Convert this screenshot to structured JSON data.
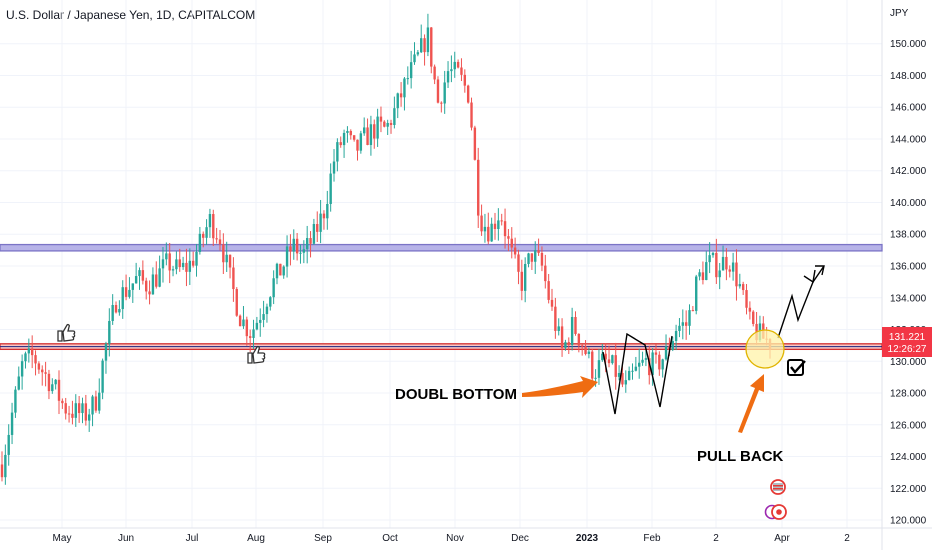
{
  "header": {
    "title": "U.S. Dollar / Japanese Yen, 1D, CAPITALCOM"
  },
  "chart_data": {
    "type": "candlestick",
    "title": "U.S. Dollar / Japanese Yen, 1D, CAPITALCOM",
    "currency": "JPY",
    "y_ticks": [
      120,
      122,
      124,
      126,
      128,
      130,
      132,
      134,
      136,
      138,
      140,
      142,
      144,
      146,
      148,
      150
    ],
    "ylim": [
      119.5,
      152.5
    ],
    "x_ticks": [
      {
        "label": "May",
        "bold": false
      },
      {
        "label": "Jun",
        "bold": false
      },
      {
        "label": "Jul",
        "bold": false
      },
      {
        "label": "Aug",
        "bold": false
      },
      {
        "label": "Sep",
        "bold": false
      },
      {
        "label": "Oct",
        "bold": false
      },
      {
        "label": "Nov",
        "bold": false
      },
      {
        "label": "Dec",
        "bold": false
      },
      {
        "label": "2023",
        "bold": true
      },
      {
        "label": "Feb",
        "bold": false
      },
      {
        "label": "2",
        "bold": false
      },
      {
        "label": "Apr",
        "bold": false
      },
      {
        "label": "2",
        "bold": false
      }
    ],
    "price_label": {
      "price": "131.221",
      "countdown": "12:26:27",
      "color": "#f23645"
    },
    "resistance_zone": [
      136.95,
      137.35
    ],
    "support_zone": [
      130.75,
      131.1
    ],
    "path_closes": [
      123.5,
      126.8,
      129.9,
      130.3,
      129.3,
      128.4,
      127.1,
      126.8,
      126.6,
      127.4,
      130.9,
      133.9,
      134.5,
      135.2,
      134.8,
      135.4,
      136.2,
      135.7,
      136.0,
      137.2,
      138.9,
      137.8,
      135.1,
      132.7,
      131.8,
      133.2,
      134.8,
      135.9,
      137.3,
      136.7,
      137.8,
      139.4,
      142.7,
      144.3,
      143.2,
      144.1,
      144.7,
      144.6,
      146.0,
      147.7,
      149.0,
      150.6,
      146.3,
      148.3,
      148.0,
      146.8,
      139.1,
      138.2,
      139.5,
      136.9,
      134.8,
      136.8,
      136.0,
      133.1,
      130.6,
      132.3,
      131.0,
      129.3,
      130.0,
      129.5,
      128.2,
      129.3,
      130.0,
      129.7,
      130.5,
      132.2,
      132.3,
      135.1,
      136.2,
      136.0,
      136.5,
      134.9,
      132.4,
      131.6,
      131.2
    ],
    "annotations": [
      {
        "text": "DOUBL BOTTOM"
      },
      {
        "text": "PULL BACK"
      }
    ]
  },
  "colors": {
    "up": "#26a69a",
    "down": "#ef5350",
    "grid": "#f0f3fa",
    "resistance": "#7b74c6",
    "support": "#ef5350",
    "arrow": "#ef6c12",
    "highlight": "#fff3a8",
    "axis_text": "#131722"
  },
  "icons": [
    "thumbs-up-icon",
    "thumbs-up-icon",
    "checkmark-box-icon",
    "flag-us-icon",
    "flag-jp-icon"
  ]
}
